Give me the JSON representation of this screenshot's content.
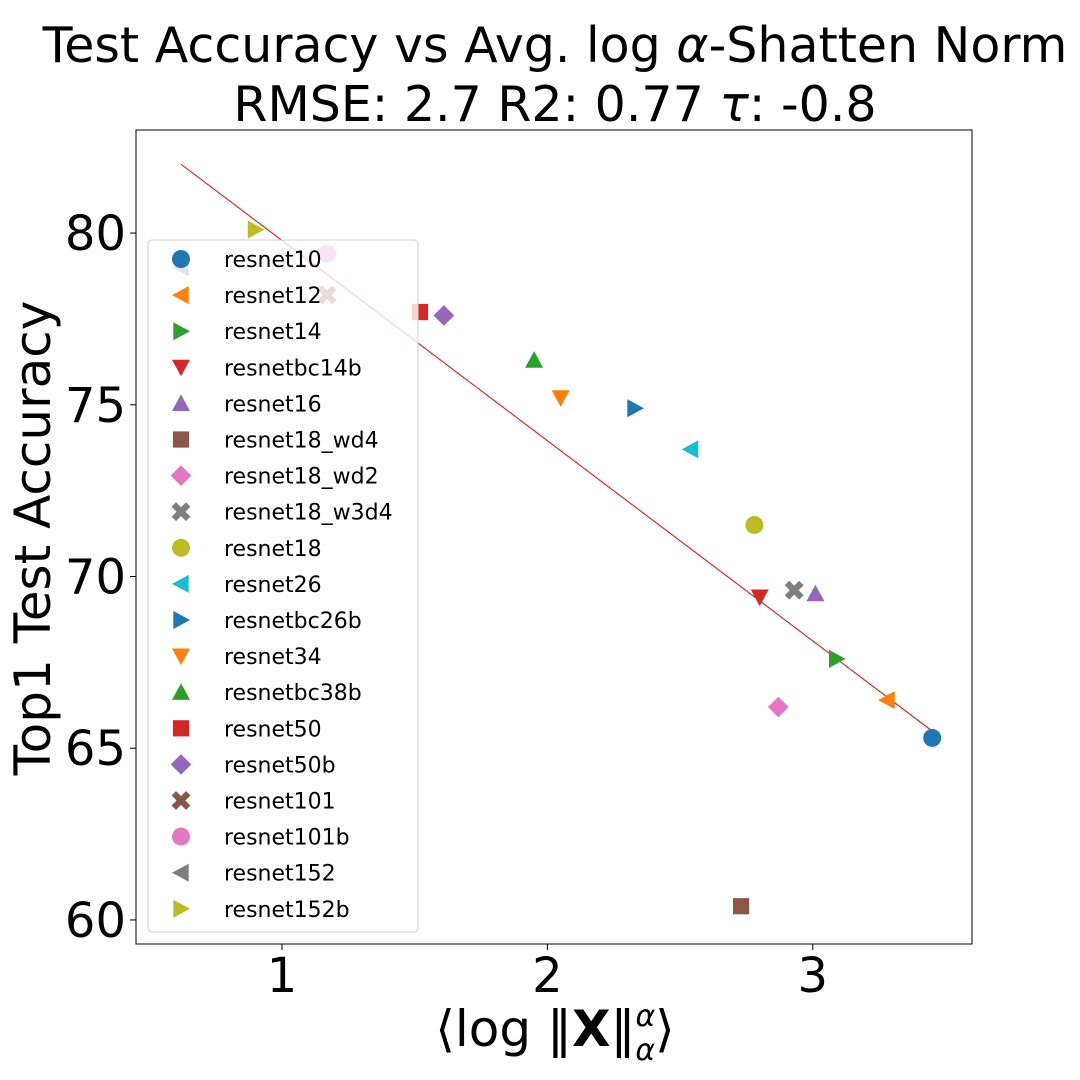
{
  "chart_data": {
    "type": "scatter",
    "title_line1_prefix": "Test Accuracy vs Avg. log ",
    "title_line1_symbol": "α",
    "title_line1_suffix": "-Shatten Norm",
    "title_line2_prefix": "RMSE: 2.7 R2: 0.77 ",
    "title_line2_symbol": "τ",
    "title_line2_suffix": ": -0.8",
    "ylabel": "Top1 Test Accuracy",
    "xlabel_parts": {
      "open": "⟨log ‖",
      "bold": "X",
      "close": "‖",
      "sup": "α",
      "sub": "α",
      "end": "⟩"
    },
    "xlim": [
      0.45,
      3.6
    ],
    "ylim": [
      59.3,
      83.0
    ],
    "xticks": [
      1,
      2,
      3
    ],
    "yticks": [
      60,
      65,
      70,
      75,
      80
    ],
    "fit_line": {
      "x": [
        0.62,
        3.45
      ],
      "y": [
        82.0,
        65.5
      ],
      "color": "#ff0000"
    },
    "legend_position": "upper-left",
    "series": [
      {
        "name": "resnet10",
        "marker": "circle",
        "color": "#1f77b4",
        "x": 3.45,
        "y": 65.3
      },
      {
        "name": "resnet12",
        "marker": "triangle-left",
        "color": "#ff7f0e",
        "x": 3.28,
        "y": 66.4
      },
      {
        "name": "resnet14",
        "marker": "triangle-right",
        "color": "#2ca02c",
        "x": 3.09,
        "y": 67.6
      },
      {
        "name": "resnetbc14b",
        "marker": "triangle-down",
        "color": "#d62728",
        "x": 2.8,
        "y": 69.4
      },
      {
        "name": "resnet16",
        "marker": "triangle-up",
        "color": "#9467bd",
        "x": 3.01,
        "y": 69.5
      },
      {
        "name": "resnet18_wd4",
        "marker": "square",
        "color": "#8c564b",
        "x": 2.73,
        "y": 60.4
      },
      {
        "name": "resnet18_wd2",
        "marker": "diamond",
        "color": "#e377c2",
        "x": 2.87,
        "y": 66.2
      },
      {
        "name": "resnet18_w3d4",
        "marker": "x",
        "color": "#7f7f7f",
        "x": 2.93,
        "y": 69.6
      },
      {
        "name": "resnet18",
        "marker": "circle",
        "color": "#bcbd22",
        "x": 2.78,
        "y": 71.5
      },
      {
        "name": "resnet26",
        "marker": "triangle-left",
        "color": "#17becf",
        "x": 2.54,
        "y": 73.7
      },
      {
        "name": "resnetbc26b",
        "marker": "triangle-right",
        "color": "#1f77b4",
        "x": 2.33,
        "y": 74.9
      },
      {
        "name": "resnet34",
        "marker": "triangle-down",
        "color": "#ff7f0e",
        "x": 2.05,
        "y": 75.2
      },
      {
        "name": "resnetbc38b",
        "marker": "triangle-up",
        "color": "#2ca02c",
        "x": 1.95,
        "y": 76.3
      },
      {
        "name": "resnet50",
        "marker": "square",
        "color": "#d62728",
        "x": 1.52,
        "y": 77.7
      },
      {
        "name": "resnet50b",
        "marker": "diamond",
        "color": "#9467bd",
        "x": 1.61,
        "y": 77.6
      },
      {
        "name": "resnet101",
        "marker": "x",
        "color": "#8c564b",
        "x": 1.17,
        "y": 78.2
      },
      {
        "name": "resnet101b",
        "marker": "circle",
        "color": "#e377c2",
        "x": 1.17,
        "y": 79.4
      },
      {
        "name": "resnet152",
        "marker": "triangle-left",
        "color": "#7f7f7f",
        "x": 0.62,
        "y": 79.0
      },
      {
        "name": "resnet152b",
        "marker": "triangle-right",
        "color": "#bcbd22",
        "x": 0.9,
        "y": 80.1
      }
    ]
  }
}
